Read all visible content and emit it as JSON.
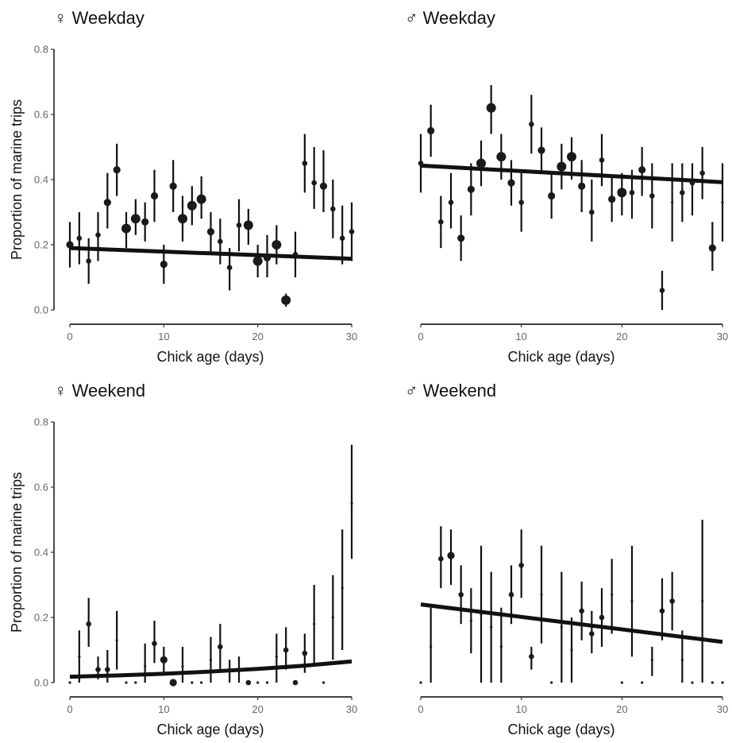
{
  "chart_data": [
    {
      "type": "scatter",
      "title": "♀ Weekday",
      "xlabel": "Chick age (days)",
      "ylabel": "Proportion of marine trips",
      "xlim": [
        0,
        30
      ],
      "ylim": [
        0,
        0.8
      ],
      "xticks": [
        "0",
        "10",
        "20",
        "30"
      ],
      "yticks": [
        "0.0",
        "0.2",
        "0.4",
        "0.6",
        "0.8"
      ],
      "grid": false,
      "points": [
        {
          "x": 0,
          "y": 0.2,
          "low": 0.13,
          "high": 0.27,
          "size": 2
        },
        {
          "x": 1,
          "y": 0.22,
          "low": 0.14,
          "high": 0.3,
          "size": 1
        },
        {
          "x": 2,
          "y": 0.15,
          "low": 0.08,
          "high": 0.22,
          "size": 1
        },
        {
          "x": 3,
          "y": 0.23,
          "low": 0.15,
          "high": 0.3,
          "size": 1
        },
        {
          "x": 4,
          "y": 0.33,
          "low": 0.25,
          "high": 0.42,
          "size": 2
        },
        {
          "x": 5,
          "y": 0.43,
          "low": 0.35,
          "high": 0.51,
          "size": 2
        },
        {
          "x": 6,
          "y": 0.25,
          "low": 0.19,
          "high": 0.3,
          "size": 3
        },
        {
          "x": 7,
          "y": 0.28,
          "low": 0.23,
          "high": 0.34,
          "size": 3
        },
        {
          "x": 8,
          "y": 0.27,
          "low": 0.21,
          "high": 0.33,
          "size": 2
        },
        {
          "x": 9,
          "y": 0.35,
          "low": 0.27,
          "high": 0.43,
          "size": 2
        },
        {
          "x": 10,
          "y": 0.14,
          "low": 0.08,
          "high": 0.2,
          "size": 2
        },
        {
          "x": 11,
          "y": 0.38,
          "low": 0.3,
          "high": 0.46,
          "size": 2
        },
        {
          "x": 12,
          "y": 0.28,
          "low": 0.21,
          "high": 0.35,
          "size": 3
        },
        {
          "x": 13,
          "y": 0.32,
          "low": 0.26,
          "high": 0.38,
          "size": 3
        },
        {
          "x": 14,
          "y": 0.34,
          "low": 0.28,
          "high": 0.41,
          "size": 3
        },
        {
          "x": 15,
          "y": 0.24,
          "low": 0.17,
          "high": 0.3,
          "size": 2
        },
        {
          "x": 16,
          "y": 0.21,
          "low": 0.14,
          "high": 0.28,
          "size": 1
        },
        {
          "x": 17,
          "y": 0.13,
          "low": 0.06,
          "high": 0.19,
          "size": 1
        },
        {
          "x": 18,
          "y": 0.26,
          "low": 0.18,
          "high": 0.34,
          "size": 1
        },
        {
          "x": 19,
          "y": 0.26,
          "low": 0.2,
          "high": 0.31,
          "size": 3
        },
        {
          "x": 20,
          "y": 0.15,
          "low": 0.1,
          "high": 0.2,
          "size": 3
        },
        {
          "x": 21,
          "y": 0.16,
          "low": 0.1,
          "high": 0.23,
          "size": 2
        },
        {
          "x": 22,
          "y": 0.2,
          "low": 0.14,
          "high": 0.26,
          "size": 3
        },
        {
          "x": 23,
          "y": 0.03,
          "low": 0.01,
          "high": 0.05,
          "size": 3
        },
        {
          "x": 24,
          "y": 0.17,
          "low": 0.1,
          "high": 0.24,
          "size": 1
        },
        {
          "x": 25,
          "y": 0.45,
          "low": 0.36,
          "high": 0.54,
          "size": 1
        },
        {
          "x": 26,
          "y": 0.39,
          "low": 0.31,
          "high": 0.5,
          "size": 1
        },
        {
          "x": 27,
          "y": 0.38,
          "low": 0.3,
          "high": 0.49,
          "size": 2
        },
        {
          "x": 28,
          "y": 0.31,
          "low": 0.22,
          "high": 0.4,
          "size": 1
        },
        {
          "x": 29,
          "y": 0.22,
          "low": 0.14,
          "high": 0.32,
          "size": 1
        },
        {
          "x": 30,
          "y": 0.24,
          "low": 0.15,
          "high": 0.33,
          "size": 1
        }
      ],
      "trend": {
        "x": [
          0,
          30
        ],
        "y": [
          0.19,
          0.157
        ]
      }
    },
    {
      "type": "scatter",
      "title": "♂ Weekday",
      "xlabel": "Chick age (days)",
      "ylabel": "",
      "xlim": [
        0,
        30
      ],
      "ylim": [
        0,
        0.8
      ],
      "xticks": [
        "0",
        "10",
        "20",
        "30"
      ],
      "yticks": [],
      "grid": false,
      "points": [
        {
          "x": 0,
          "y": 0.45,
          "low": 0.36,
          "high": 0.54,
          "size": 1
        },
        {
          "x": 1,
          "y": 0.55,
          "low": 0.47,
          "high": 0.63,
          "size": 2
        },
        {
          "x": 2,
          "y": 0.27,
          "low": 0.19,
          "high": 0.35,
          "size": 1
        },
        {
          "x": 3,
          "y": 0.33,
          "low": 0.25,
          "high": 0.42,
          "size": 1
        },
        {
          "x": 4,
          "y": 0.22,
          "low": 0.15,
          "high": 0.29,
          "size": 2
        },
        {
          "x": 5,
          "y": 0.37,
          "low": 0.29,
          "high": 0.45,
          "size": 2
        },
        {
          "x": 6,
          "y": 0.45,
          "low": 0.38,
          "high": 0.52,
          "size": 3
        },
        {
          "x": 7,
          "y": 0.62,
          "low": 0.54,
          "high": 0.69,
          "size": 3
        },
        {
          "x": 8,
          "y": 0.47,
          "low": 0.4,
          "high": 0.54,
          "size": 3
        },
        {
          "x": 9,
          "y": 0.39,
          "low": 0.32,
          "high": 0.46,
          "size": 2
        },
        {
          "x": 10,
          "y": 0.33,
          "low": 0.24,
          "high": 0.42,
          "size": 1
        },
        {
          "x": 11,
          "y": 0.57,
          "low": 0.48,
          "high": 0.66,
          "size": 1
        },
        {
          "x": 12,
          "y": 0.49,
          "low": 0.42,
          "high": 0.56,
          "size": 2
        },
        {
          "x": 13,
          "y": 0.35,
          "low": 0.28,
          "high": 0.42,
          "size": 2
        },
        {
          "x": 14,
          "y": 0.44,
          "low": 0.37,
          "high": 0.51,
          "size": 3
        },
        {
          "x": 15,
          "y": 0.47,
          "low": 0.4,
          "high": 0.53,
          "size": 3
        },
        {
          "x": 16,
          "y": 0.38,
          "low": 0.3,
          "high": 0.46,
          "size": 2
        },
        {
          "x": 17,
          "y": 0.3,
          "low": 0.21,
          "high": 0.4,
          "size": 1
        },
        {
          "x": 18,
          "y": 0.46,
          "low": 0.38,
          "high": 0.54,
          "size": 1
        },
        {
          "x": 19,
          "y": 0.34,
          "low": 0.27,
          "high": 0.41,
          "size": 2
        },
        {
          "x": 20,
          "y": 0.36,
          "low": 0.29,
          "high": 0.42,
          "size": 3
        },
        {
          "x": 21,
          "y": 0.36,
          "low": 0.28,
          "high": 0.43,
          "size": 1
        },
        {
          "x": 22,
          "y": 0.43,
          "low": 0.35,
          "high": 0.5,
          "size": 2
        },
        {
          "x": 23,
          "y": 0.35,
          "low": 0.25,
          "high": 0.45,
          "size": 1
        },
        {
          "x": 24,
          "y": 0.06,
          "low": 0.0,
          "high": 0.12,
          "size": 1
        },
        {
          "x": 25,
          "y": 0.33,
          "low": 0.21,
          "high": 0.45,
          "size": 0
        },
        {
          "x": 26,
          "y": 0.36,
          "low": 0.27,
          "high": 0.45,
          "size": 1
        },
        {
          "x": 27,
          "y": 0.39,
          "low": 0.29,
          "high": 0.45,
          "size": 1
        },
        {
          "x": 28,
          "y": 0.42,
          "low": 0.34,
          "high": 0.5,
          "size": 1
        },
        {
          "x": 29,
          "y": 0.19,
          "low": 0.12,
          "high": 0.27,
          "size": 2
        },
        {
          "x": 30,
          "y": 0.33,
          "low": 0.21,
          "high": 0.45,
          "size": 0
        }
      ],
      "trend": {
        "x": [
          0,
          30
        ],
        "y": [
          0.443,
          0.392
        ]
      }
    },
    {
      "type": "scatter",
      "title": "♀ Weekend",
      "xlabel": "Chick age (days)",
      "ylabel": "Proportion of marine trips",
      "xlim": [
        0,
        30
      ],
      "ylim": [
        0,
        0.8
      ],
      "xticks": [
        "0",
        "10",
        "20",
        "30"
      ],
      "yticks": [
        "0.0",
        "0.2",
        "0.4",
        "0.6",
        "0.8"
      ],
      "grid": false,
      "points": [
        {
          "x": 0,
          "y": 0.0,
          "low": 0.0,
          "high": 0.0,
          "size": 0
        },
        {
          "x": 1,
          "y": 0.08,
          "low": 0.0,
          "high": 0.16,
          "size": 0
        },
        {
          "x": 2,
          "y": 0.18,
          "low": 0.11,
          "high": 0.26,
          "size": 1
        },
        {
          "x": 3,
          "y": 0.04,
          "low": 0.01,
          "high": 0.08,
          "size": 1
        },
        {
          "x": 4,
          "y": 0.04,
          "low": 0.0,
          "high": 0.1,
          "size": 1
        },
        {
          "x": 5,
          "y": 0.13,
          "low": 0.04,
          "high": 0.22,
          "size": 0
        },
        {
          "x": 6,
          "y": 0.0,
          "low": 0.0,
          "high": 0.0,
          "size": 0
        },
        {
          "x": 7,
          "y": 0.0,
          "low": 0.0,
          "high": 0.0,
          "size": 0
        },
        {
          "x": 8,
          "y": 0.05,
          "low": 0.0,
          "high": 0.12,
          "size": 0
        },
        {
          "x": 9,
          "y": 0.12,
          "low": 0.06,
          "high": 0.19,
          "size": 1
        },
        {
          "x": 10,
          "y": 0.07,
          "low": 0.03,
          "high": 0.11,
          "size": 2
        },
        {
          "x": 11,
          "y": 0.0,
          "low": 0.0,
          "high": 0.0,
          "size": 2
        },
        {
          "x": 12,
          "y": 0.05,
          "low": 0.0,
          "high": 0.11,
          "size": 0
        },
        {
          "x": 13,
          "y": 0.0,
          "low": 0.0,
          "high": 0.0,
          "size": 0
        },
        {
          "x": 14,
          "y": 0.0,
          "low": 0.0,
          "high": 0.0,
          "size": 0
        },
        {
          "x": 15,
          "y": 0.07,
          "low": 0.0,
          "high": 0.14,
          "size": 0
        },
        {
          "x": 16,
          "y": 0.11,
          "low": 0.04,
          "high": 0.18,
          "size": 1
        },
        {
          "x": 17,
          "y": 0.04,
          "low": 0.0,
          "high": 0.07,
          "size": 0
        },
        {
          "x": 18,
          "y": 0.04,
          "low": 0.0,
          "high": 0.08,
          "size": 0
        },
        {
          "x": 19,
          "y": 0.0,
          "low": 0.0,
          "high": 0.0,
          "size": 1
        },
        {
          "x": 20,
          "y": 0.0,
          "low": 0.0,
          "high": 0.0,
          "size": 0
        },
        {
          "x": 21,
          "y": 0.0,
          "low": 0.0,
          "high": 0.0,
          "size": 0
        },
        {
          "x": 22,
          "y": 0.08,
          "low": 0.0,
          "high": 0.15,
          "size": 0
        },
        {
          "x": 23,
          "y": 0.1,
          "low": 0.04,
          "high": 0.17,
          "size": 1
        },
        {
          "x": 24,
          "y": 0.0,
          "low": 0.0,
          "high": 0.0,
          "size": 1
        },
        {
          "x": 25,
          "y": 0.09,
          "low": 0.03,
          "high": 0.15,
          "size": 1
        },
        {
          "x": 26,
          "y": 0.18,
          "low": 0.06,
          "high": 0.3,
          "size": 0
        },
        {
          "x": 27,
          "y": 0.0,
          "low": 0.0,
          "high": 0.0,
          "size": 0
        },
        {
          "x": 28,
          "y": 0.2,
          "low": 0.07,
          "high": 0.33,
          "size": 0
        },
        {
          "x": 29,
          "y": 0.29,
          "low": 0.1,
          "high": 0.47,
          "size": 0
        },
        {
          "x": 30,
          "y": 0.55,
          "low": 0.38,
          "high": 0.73,
          "size": 0
        }
      ],
      "trend": {
        "x": [
          0,
          5,
          10,
          15,
          20,
          25,
          30
        ],
        "y": [
          0.018,
          0.022,
          0.027,
          0.034,
          0.042,
          0.052,
          0.065
        ]
      }
    },
    {
      "type": "scatter",
      "title": "♂ Weekend",
      "xlabel": "Chick age (days)",
      "ylabel": "",
      "xlim": [
        0,
        30
      ],
      "ylim": [
        0,
        0.8
      ],
      "xticks": [
        "0",
        "10",
        "20",
        "30"
      ],
      "yticks": [],
      "grid": false,
      "points": [
        {
          "x": 0,
          "y": 0.0,
          "low": 0.0,
          "high": 0.0,
          "size": 0
        },
        {
          "x": 1,
          "y": 0.11,
          "low": 0.0,
          "high": 0.23,
          "size": 0
        },
        {
          "x": 2,
          "y": 0.38,
          "low": 0.29,
          "high": 0.48,
          "size": 1
        },
        {
          "x": 3,
          "y": 0.39,
          "low": 0.3,
          "high": 0.47,
          "size": 2
        },
        {
          "x": 4,
          "y": 0.27,
          "low": 0.18,
          "high": 0.36,
          "size": 1
        },
        {
          "x": 5,
          "y": 0.19,
          "low": 0.09,
          "high": 0.29,
          "size": 0
        },
        {
          "x": 6,
          "y": 0.21,
          "low": 0.0,
          "high": 0.42,
          "size": 0
        },
        {
          "x": 7,
          "y": 0.17,
          "low": 0.0,
          "high": 0.34,
          "size": 0
        },
        {
          "x": 8,
          "y": 0.11,
          "low": 0.0,
          "high": 0.23,
          "size": 0
        },
        {
          "x": 9,
          "y": 0.27,
          "low": 0.18,
          "high": 0.36,
          "size": 1
        },
        {
          "x": 10,
          "y": 0.36,
          "low": 0.26,
          "high": 0.47,
          "size": 1
        },
        {
          "x": 11,
          "y": 0.08,
          "low": 0.04,
          "high": 0.11,
          "size": 1
        },
        {
          "x": 12,
          "y": 0.27,
          "low": 0.12,
          "high": 0.42,
          "size": 0
        },
        {
          "x": 13,
          "y": 0.0,
          "low": 0.0,
          "high": 0.0,
          "size": 0
        },
        {
          "x": 14,
          "y": 0.17,
          "low": 0.0,
          "high": 0.34,
          "size": 0
        },
        {
          "x": 15,
          "y": 0.1,
          "low": 0.0,
          "high": 0.2,
          "size": 0
        },
        {
          "x": 16,
          "y": 0.22,
          "low": 0.13,
          "high": 0.31,
          "size": 1
        },
        {
          "x": 17,
          "y": 0.15,
          "low": 0.09,
          "high": 0.22,
          "size": 1
        },
        {
          "x": 18,
          "y": 0.2,
          "low": 0.11,
          "high": 0.29,
          "size": 1
        },
        {
          "x": 19,
          "y": 0.27,
          "low": 0.15,
          "high": 0.38,
          "size": 0
        },
        {
          "x": 20,
          "y": 0.0,
          "low": 0.0,
          "high": 0.0,
          "size": 0
        },
        {
          "x": 21,
          "y": 0.25,
          "low": 0.08,
          "high": 0.42,
          "size": 0
        },
        {
          "x": 22,
          "y": 0.0,
          "low": 0.0,
          "high": 0.0,
          "size": 0
        },
        {
          "x": 23,
          "y": 0.07,
          "low": 0.02,
          "high": 0.11,
          "size": 0
        },
        {
          "x": 24,
          "y": 0.22,
          "low": 0.13,
          "high": 0.32,
          "size": 1
        },
        {
          "x": 25,
          "y": 0.25,
          "low": 0.16,
          "high": 0.34,
          "size": 1
        },
        {
          "x": 26,
          "y": 0.07,
          "low": 0.0,
          "high": 0.16,
          "size": 0
        },
        {
          "x": 27,
          "y": 0.0,
          "low": 0.0,
          "high": 0.0,
          "size": 0
        },
        {
          "x": 28,
          "y": 0.25,
          "low": 0.0,
          "high": 0.5,
          "size": 0
        },
        {
          "x": 29,
          "y": 0.0,
          "low": 0.0,
          "high": 0.0,
          "size": 0
        },
        {
          "x": 30,
          "y": 0.0,
          "low": 0.0,
          "high": 0.0,
          "size": 0
        }
      ],
      "trend": {
        "x": [
          0,
          30
        ],
        "y": [
          0.24,
          0.125
        ]
      }
    }
  ]
}
